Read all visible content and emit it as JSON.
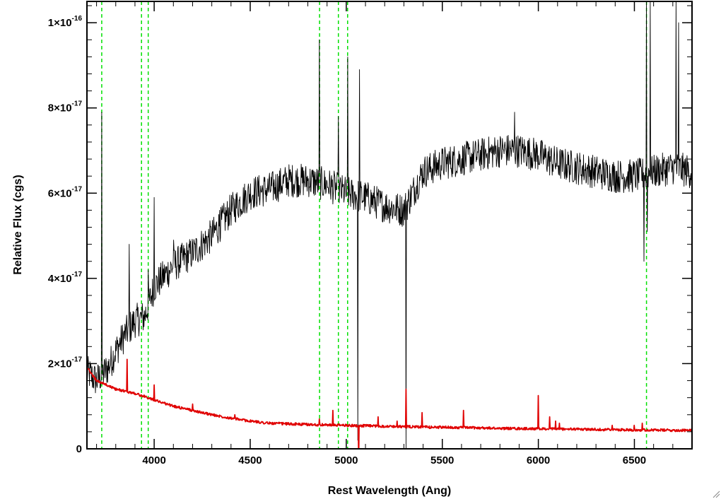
{
  "chart_data": {
    "type": "line",
    "title": "",
    "xlabel": "Rest Wavelength (Ang)",
    "ylabel": "Relative Flux (cgs)",
    "xlim": [
      3650,
      6800
    ],
    "ylim": [
      0,
      1.05e-16
    ],
    "x_ticks": [
      {
        "value": 4000,
        "label": "4000"
      },
      {
        "value": 4500,
        "label": "4500"
      },
      {
        "value": 5000,
        "label": "5000"
      },
      {
        "value": 5500,
        "label": "5500"
      },
      {
        "value": 6000,
        "label": "6000"
      },
      {
        "value": 6500,
        "label": "6500"
      }
    ],
    "y_ticks": [
      {
        "value": 0,
        "mantissa": "0",
        "exponent": ""
      },
      {
        "value": 2e-17,
        "mantissa": "2×10",
        "exponent": "-17"
      },
      {
        "value": 4e-17,
        "mantissa": "4×10",
        "exponent": "-17"
      },
      {
        "value": 6e-17,
        "mantissa": "6×10",
        "exponent": "-17"
      },
      {
        "value": 8e-17,
        "mantissa": "8×10",
        "exponent": "-17"
      },
      {
        "value": 1e-16,
        "mantissa": "1×10",
        "exponent": "-16"
      }
    ],
    "reference_lines": {
      "color": "#00e000",
      "style": "dashed",
      "x": [
        3727,
        3934,
        3969,
        4861,
        4959,
        5007,
        6563
      ]
    },
    "series": [
      {
        "color": "#000000",
        "knots": [
          [
            3650,
            1.8e-17
          ],
          [
            3700,
            1.6e-17
          ],
          [
            3760,
            1.9e-17
          ],
          [
            3800,
            2.3e-17
          ],
          [
            3850,
            2.7e-17
          ],
          [
            3900,
            3e-17
          ],
          [
            3950,
            3.1e-17
          ],
          [
            4000,
            3.8e-17
          ],
          [
            4100,
            4.3e-17
          ],
          [
            4200,
            4.6e-17
          ],
          [
            4300,
            5e-17
          ],
          [
            4400,
            5.6e-17
          ],
          [
            4500,
            6e-17
          ],
          [
            4600,
            6.1e-17
          ],
          [
            4700,
            6.3e-17
          ],
          [
            4800,
            6.3e-17
          ],
          [
            4900,
            6.2e-17
          ],
          [
            5000,
            6e-17
          ],
          [
            5100,
            5.9e-17
          ],
          [
            5200,
            5.7e-17
          ],
          [
            5300,
            5.6e-17
          ],
          [
            5400,
            6.5e-17
          ],
          [
            5500,
            6.7e-17
          ],
          [
            5600,
            6.8e-17
          ],
          [
            5700,
            6.9e-17
          ],
          [
            5800,
            7e-17
          ],
          [
            5900,
            7e-17
          ],
          [
            6000,
            6.9e-17
          ],
          [
            6100,
            6.7e-17
          ],
          [
            6200,
            6.6e-17
          ],
          [
            6300,
            6.5e-17
          ],
          [
            6400,
            6.4e-17
          ],
          [
            6500,
            6.4e-17
          ],
          [
            6600,
            6.5e-17
          ],
          [
            6700,
            6.6e-17
          ],
          [
            6800,
            6.5e-17
          ]
        ],
        "spikes": [
          [
            3727,
            7.9e-17
          ],
          [
            3870,
            4.8e-17
          ],
          [
            3969,
            4.2e-17
          ],
          [
            4000,
            5.9e-17
          ],
          [
            4102,
            4.9e-17
          ],
          [
            4340,
            5.6e-17
          ],
          [
            4861,
            9.6e-17
          ],
          [
            4959,
            7.8e-17
          ],
          [
            5007,
            9.2e-17
          ],
          [
            5070,
            8.9e-17
          ],
          [
            5876,
            7.9e-17
          ],
          [
            6563,
            1.05e-16
          ],
          [
            6583,
            1.05e-16
          ],
          [
            6716,
            1.05e-16
          ],
          [
            6731,
            1e-16
          ]
        ],
        "dips": [
          [
            5060,
            2e-18
          ],
          [
            5310,
            0.0
          ],
          [
            6550,
            4.4e-17
          ],
          [
            6568,
            5.1e-17
          ]
        ],
        "noise": 4e-18
      },
      {
        "color": "#e00000",
        "knots": [
          [
            3650,
            1.9e-17
          ],
          [
            3700,
            1.6e-17
          ],
          [
            3800,
            1.4e-17
          ],
          [
            3900,
            1.3e-17
          ],
          [
            4000,
            1.15e-17
          ],
          [
            4100,
            1e-17
          ],
          [
            4200,
            9e-18
          ],
          [
            4300,
            8e-18
          ],
          [
            4400,
            7.2e-18
          ],
          [
            4500,
            6.5e-18
          ],
          [
            4600,
            6e-18
          ],
          [
            4800,
            5.7e-18
          ],
          [
            5000,
            5.5e-18
          ],
          [
            5200,
            5.3e-18
          ],
          [
            5400,
            5.1e-18
          ],
          [
            5600,
            5e-18
          ],
          [
            5800,
            4.8e-18
          ],
          [
            6000,
            4.7e-18
          ],
          [
            6200,
            4.6e-18
          ],
          [
            6400,
            4.5e-18
          ],
          [
            6600,
            4.4e-18
          ],
          [
            6800,
            4.3e-18
          ]
        ],
        "spikes": [
          [
            3860,
            2.1e-17
          ],
          [
            4000,
            1.5e-17
          ],
          [
            4130,
            1e-17
          ],
          [
            4200,
            1.05e-17
          ],
          [
            4420,
            8e-18
          ],
          [
            4860,
            7e-18
          ],
          [
            4930,
            9e-18
          ],
          [
            5165,
            7.5e-18
          ],
          [
            5265,
            6.5e-18
          ],
          [
            5310,
            1.4e-17
          ],
          [
            5395,
            8.5e-18
          ],
          [
            5610,
            9e-18
          ],
          [
            6000,
            1.25e-17
          ],
          [
            6060,
            7.5e-18
          ],
          [
            6090,
            6.5e-18
          ],
          [
            6110,
            6e-18
          ],
          [
            6385,
            5.5e-18
          ],
          [
            6500,
            5.5e-18
          ],
          [
            6540,
            6e-18
          ]
        ],
        "dips": [
          [
            5065,
            -3e-18
          ]
        ],
        "noise": 3e-19
      }
    ]
  }
}
